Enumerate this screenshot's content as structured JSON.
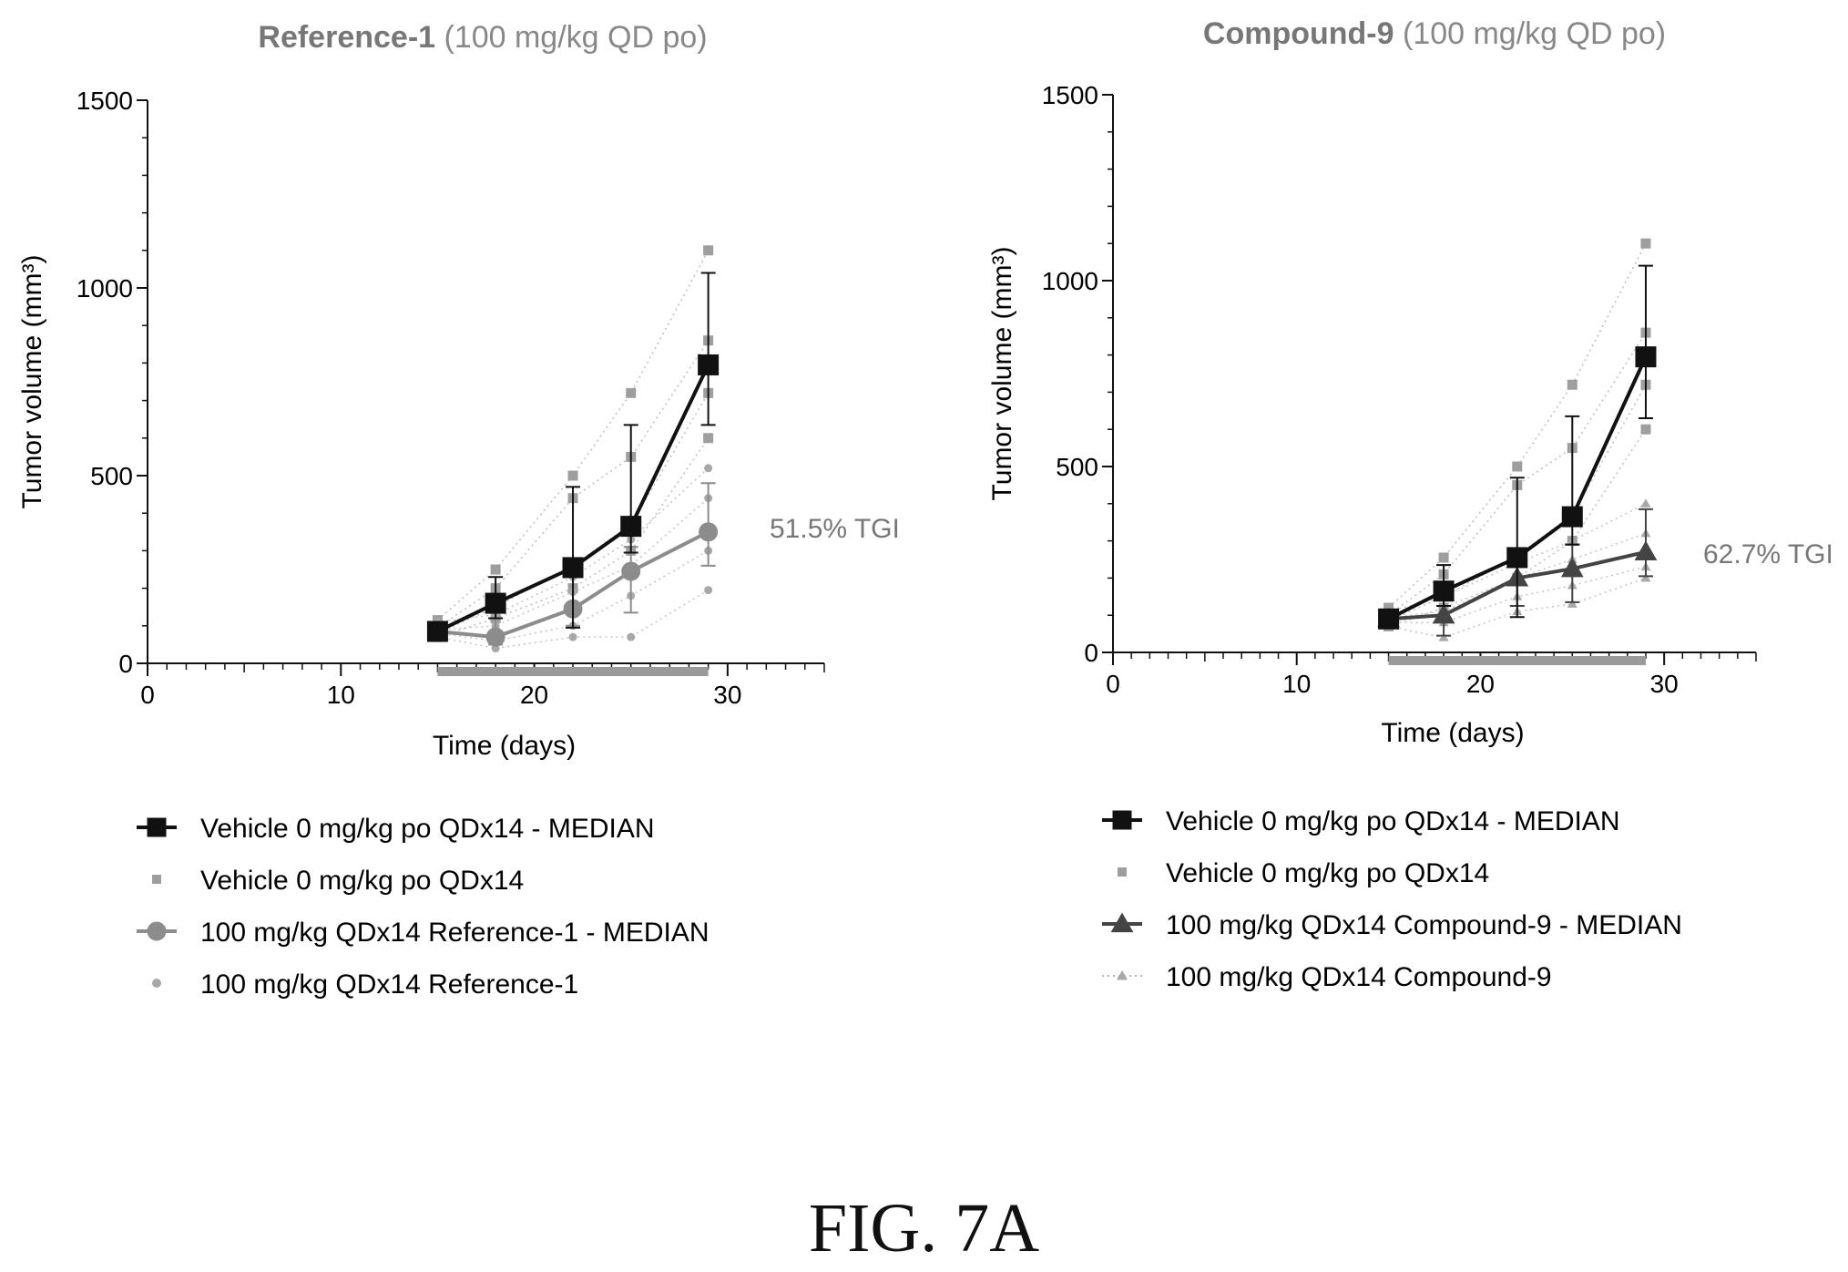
{
  "figure_label": "FIG. 7A",
  "colors": {
    "vehicle": "#111111",
    "reference": "#8c8c8c",
    "compound": "#444444",
    "title_gray": "#888888",
    "bar": "#9a9a9a"
  },
  "chart_data": [
    {
      "type": "line",
      "title": {
        "bold": "Reference-1",
        "rest": " (100 mg/kg QD po)"
      },
      "xlabel": "Time (days)",
      "ylabel": "Tumor volume (mm³)",
      "xlim": [
        0,
        35
      ],
      "ylim": [
        0,
        1500
      ],
      "xticks": [
        "0",
        "10",
        "20",
        "30"
      ],
      "yticks": [
        "0",
        "500",
        "1000",
        "1500"
      ],
      "annotation": "51.5% TGI",
      "dosing_bar": [
        15,
        29
      ],
      "legend": {
        "position": "below",
        "entries": [
          {
            "label": "Vehicle 0 mg/kg po QDx14 - MEDIAN",
            "marker": "square-large",
            "line": true
          },
          {
            "label": "Vehicle 0 mg/kg po QDx14",
            "marker": "square-small",
            "line": false
          },
          {
            "label": "100 mg/kg QDx14 Reference-1 - MEDIAN",
            "marker": "circle-large",
            "line": true
          },
          {
            "label": "100 mg/kg QDx14 Reference-1",
            "marker": "circle-small",
            "line": false
          }
        ]
      },
      "series": [
        {
          "role": "vehicle-median",
          "x": [
            15,
            18,
            22,
            25,
            29
          ],
          "y": [
            85,
            160,
            255,
            365,
            795
          ],
          "err_low": [
            15,
            40,
            160,
            70,
            160
          ],
          "err_high": [
            15,
            70,
            215,
            270,
            245
          ]
        },
        {
          "role": "vehicle-individual",
          "x": [
            15,
            18,
            22,
            25,
            29
          ],
          "y": [
            [
              115,
              95,
              80,
              70
            ],
            [
              250,
              200,
              150,
              120
            ],
            [
              500,
              440,
              260,
              200
            ],
            [
              720,
              550,
              370,
              300
            ],
            [
              1100,
              860,
              720,
              600
            ]
          ]
        },
        {
          "role": "treated-median",
          "x": [
            15,
            18,
            22,
            25,
            29
          ],
          "y": [
            85,
            70,
            145,
            245,
            350
          ],
          "err_low": [
            15,
            20,
            45,
            110,
            90
          ],
          "err_high": [
            15,
            70,
            120,
            65,
            130
          ]
        },
        {
          "role": "treated-individual",
          "x": [
            15,
            18,
            22,
            25,
            29
          ],
          "y": [
            [
              110,
              90,
              80,
              70
            ],
            [
              130,
              100,
              60,
              40
            ],
            [
              230,
              190,
              100,
              70
            ],
            [
              330,
              260,
              180,
              70
            ],
            [
              520,
              440,
              300,
              195
            ]
          ]
        }
      ]
    },
    {
      "type": "line",
      "title": {
        "bold": "Compound-9",
        "rest": " (100 mg/kg QD po)"
      },
      "xlabel": "Time (days)",
      "ylabel": "Tumor volume (mm³)",
      "xlim": [
        0,
        35
      ],
      "ylim": [
        0,
        1500
      ],
      "xticks": [
        "0",
        "10",
        "20",
        "30"
      ],
      "yticks": [
        "0",
        "500",
        "1000",
        "1500"
      ],
      "annotation": "62.7% TGI",
      "dosing_bar": [
        15,
        29
      ],
      "legend": {
        "position": "below",
        "entries": [
          {
            "label": "Vehicle 0 mg/kg po QDx14 - MEDIAN",
            "marker": "square-large",
            "line": true
          },
          {
            "label": "Vehicle 0 mg/kg po QDx14",
            "marker": "square-small",
            "line": false
          },
          {
            "label": "100 mg/kg QDx14 Compound-9 - MEDIAN",
            "marker": "triangle-large",
            "line": true
          },
          {
            "label": "100 mg/kg QDx14 Compound-9",
            "marker": "triangle-small",
            "line": "dotted"
          }
        ]
      },
      "series": [
        {
          "role": "vehicle-median",
          "x": [
            15,
            18,
            22,
            25,
            29
          ],
          "y": [
            90,
            165,
            255,
            365,
            795
          ],
          "err_low": [
            15,
            40,
            160,
            75,
            165
          ],
          "err_high": [
            15,
            70,
            215,
            270,
            245
          ]
        },
        {
          "role": "vehicle-individual",
          "x": [
            15,
            18,
            22,
            25,
            29
          ],
          "y": [
            [
              120,
              100,
              85,
              70
            ],
            [
              255,
              210,
              150,
              120
            ],
            [
              500,
              450,
              260,
              200
            ],
            [
              720,
              550,
              370,
              300
            ],
            [
              1100,
              860,
              720,
              600
            ]
          ]
        },
        {
          "role": "treated-median",
          "x": [
            15,
            18,
            22,
            25,
            29
          ],
          "y": [
            90,
            100,
            200,
            225,
            270
          ],
          "err_low": [
            15,
            55,
            75,
            90,
            65
          ],
          "err_high": [
            15,
            60,
            45,
            65,
            115
          ]
        },
        {
          "role": "treated-individual",
          "x": [
            15,
            18,
            22,
            25,
            29
          ],
          "y": [
            [
              110,
              95,
              80,
              70
            ],
            [
              150,
              110,
              80,
              40
            ],
            [
              240,
              200,
              150,
              110
            ],
            [
              300,
              250,
              180,
              130
            ],
            [
              400,
              320,
              230,
              200
            ]
          ]
        }
      ]
    }
  ]
}
